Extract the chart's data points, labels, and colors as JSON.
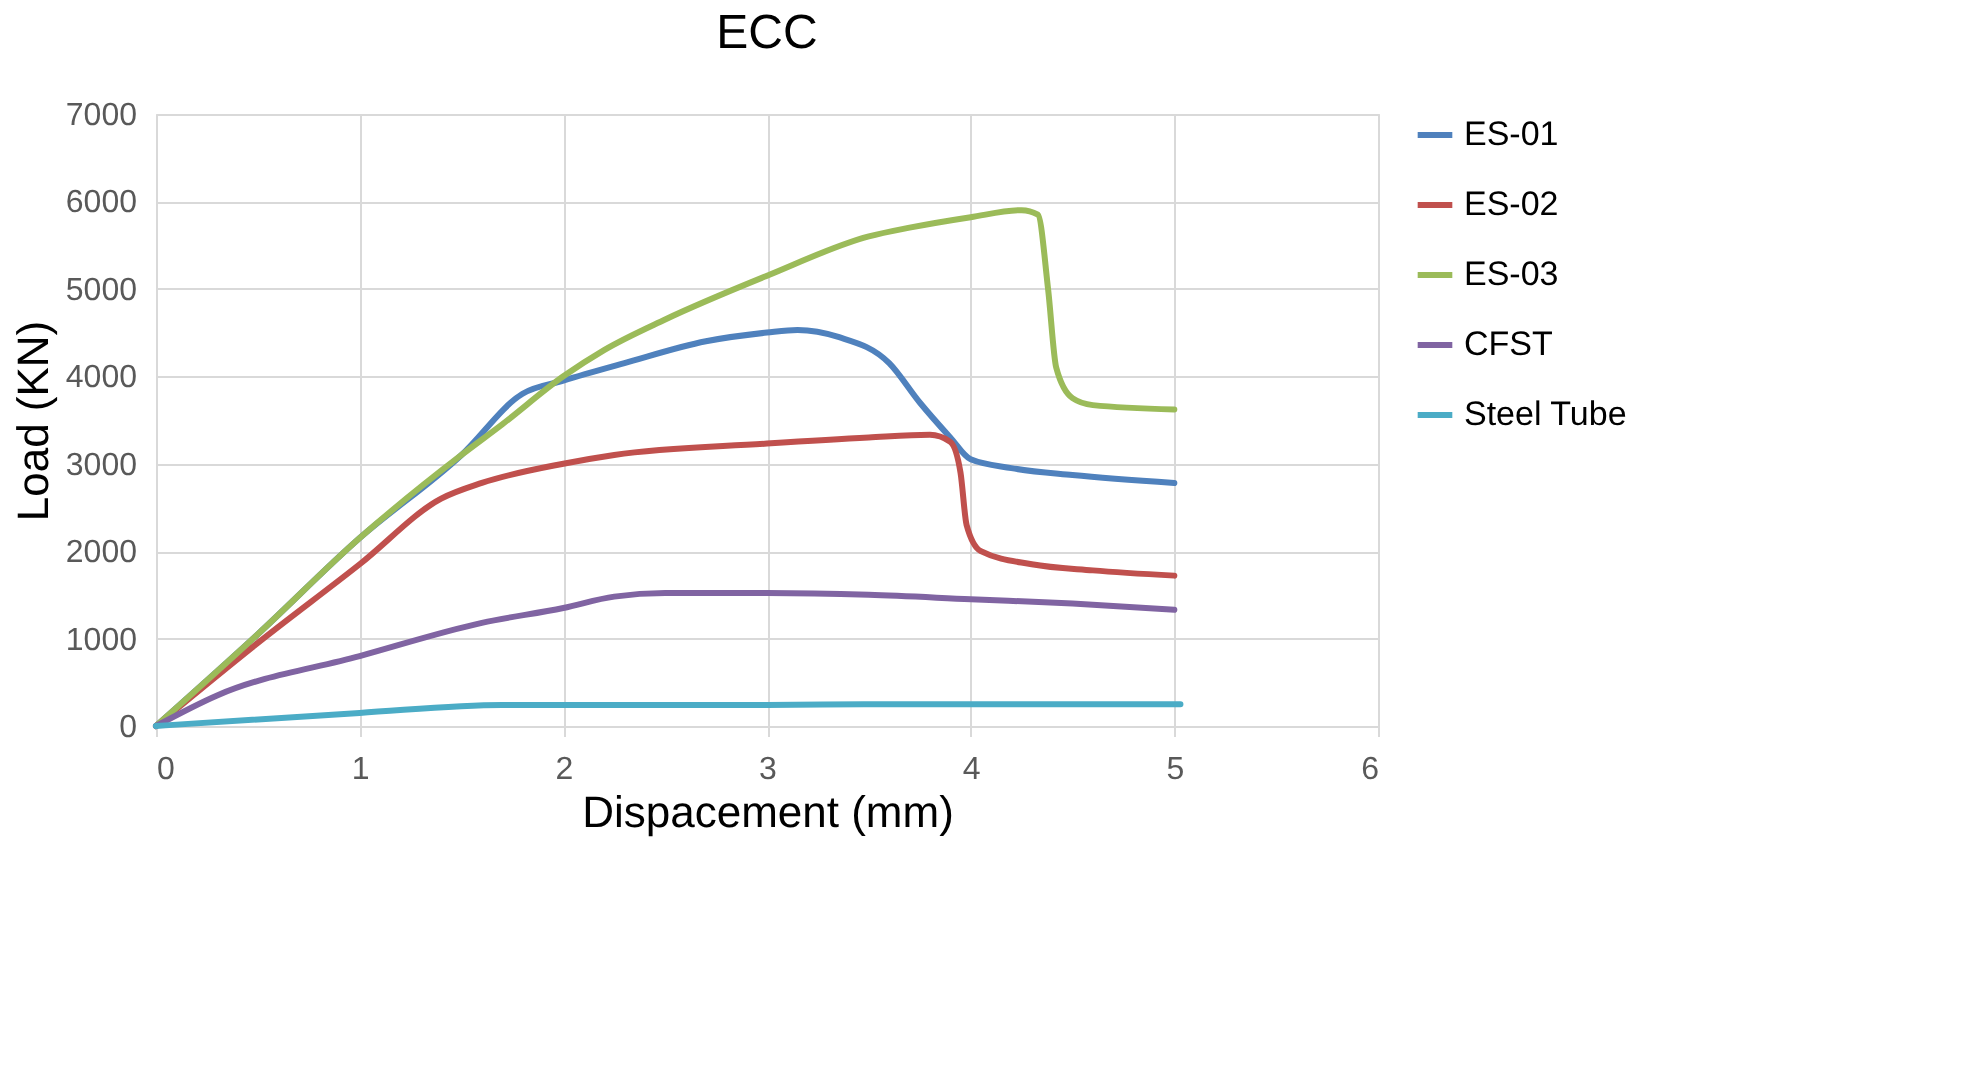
{
  "chart_data": {
    "type": "line",
    "title": "ECC",
    "xlabel": "Dispacement (mm)",
    "ylabel": "Load (KN)",
    "xlim": [
      0,
      6
    ],
    "ylim": [
      0,
      7000
    ],
    "xticks": [
      0,
      1,
      2,
      3,
      4,
      5,
      6
    ],
    "yticks": [
      0,
      1000,
      2000,
      3000,
      4000,
      5000,
      6000,
      7000
    ],
    "grid": true,
    "legend": "right",
    "series": [
      {
        "name": "ES-01",
        "color": "#4f81bd",
        "x": [
          0,
          0.5,
          1,
          1.5,
          1.8,
          2,
          2.3,
          2.7,
          3,
          3.15,
          3.35,
          3.6,
          3.75,
          3.9,
          4,
          4.2,
          4.5,
          5
        ],
        "values": [
          0,
          1050,
          2150,
          3100,
          3800,
          3950,
          4150,
          4400,
          4500,
          4530,
          4450,
          4150,
          3700,
          3300,
          3050,
          2950,
          2870,
          2780
        ]
      },
      {
        "name": "ES-02",
        "color": "#c0504d",
        "x": [
          0,
          0.5,
          1,
          1.4,
          1.6,
          2,
          2.25,
          3,
          3.5,
          3.8,
          3.9,
          3.95,
          3.98,
          4.05,
          4.3,
          4.6,
          5
        ],
        "values": [
          0,
          950,
          1850,
          2600,
          2780,
          3000,
          3100,
          3230,
          3300,
          3330,
          3250,
          2900,
          2300,
          2000,
          1850,
          1780,
          1720
        ]
      },
      {
        "name": "ES-03",
        "color": "#9bbb59",
        "x": [
          0,
          0.5,
          1,
          1.5,
          1.7,
          2,
          2.2,
          2.5,
          3,
          3.5,
          3.7,
          4,
          4.25,
          4.33,
          4.38,
          4.42,
          4.5,
          4.6,
          5
        ],
        "values": [
          0,
          1050,
          2150,
          3100,
          3450,
          4000,
          4300,
          4650,
          5150,
          5600,
          5700,
          5820,
          5900,
          5850,
          5000,
          4100,
          3750,
          3670,
          3620
        ]
      },
      {
        "name": "CFST",
        "color": "#8064a2",
        "x": [
          0,
          0.3,
          1,
          1.6,
          2,
          2.25,
          2.5,
          3,
          3.5,
          4,
          4.5,
          5
        ],
        "values": [
          0,
          350,
          800,
          1180,
          1350,
          1480,
          1520,
          1520,
          1500,
          1450,
          1400,
          1330
        ]
      },
      {
        "name": "Steel Tube",
        "color": "#4bacc6",
        "x": [
          0,
          1,
          1.7,
          2.5,
          3,
          3.5,
          4,
          5.03
        ],
        "values": [
          0,
          150,
          240,
          240,
          240,
          250,
          250,
          250
        ]
      }
    ]
  }
}
